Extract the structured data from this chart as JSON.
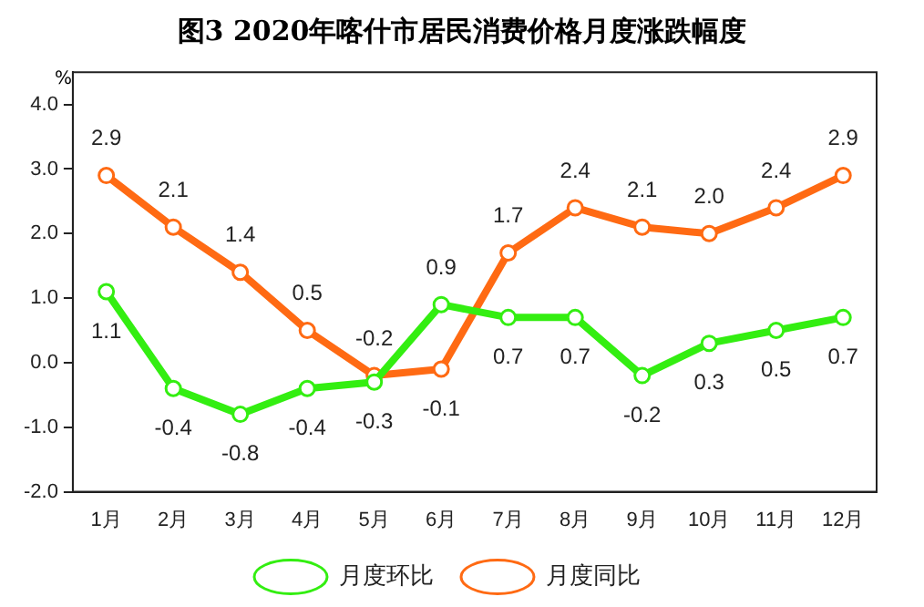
{
  "chart_data": {
    "type": "line",
    "title": "图3  2020年喀什市居民消费价格月度涨跌幅度",
    "ylabel": "%",
    "categories": [
      "1月",
      "2月",
      "3月",
      "4月",
      "5月",
      "6月",
      "7月",
      "8月",
      "9月",
      "10月",
      "11月",
      "12月"
    ],
    "series": [
      {
        "name": "月度环比",
        "color": "#33ee11",
        "values": [
          1.1,
          -0.4,
          -0.8,
          -0.4,
          -0.3,
          0.9,
          0.7,
          0.7,
          -0.2,
          0.3,
          0.5,
          0.7
        ],
        "value_labels": [
          "1.1",
          "-0.4",
          "-0.8",
          "-0.4",
          "-0.3",
          "0.9",
          "0.7",
          "0.7",
          "-0.2",
          "0.3",
          "0.5",
          "0.7"
        ]
      },
      {
        "name": "月度同比",
        "color": "#ff6a13",
        "values": [
          2.9,
          2.1,
          1.4,
          0.5,
          -0.2,
          -0.1,
          1.7,
          2.4,
          2.1,
          2.0,
          2.4,
          2.9
        ],
        "value_labels": [
          "2.9",
          "2.1",
          "1.4",
          "0.5",
          "-0.2",
          "-0.1",
          "1.7",
          "2.4",
          "2.1",
          "2.0",
          "2.4",
          "2.9"
        ]
      }
    ],
    "ylim": [
      -2,
      4.5
    ],
    "yticks": [
      {
        "value": -2,
        "label": "-2.0"
      },
      {
        "value": -1,
        "label": "-1.0"
      },
      {
        "value": 0,
        "label": "0.0"
      },
      {
        "value": 1,
        "label": "1.0"
      },
      {
        "value": 2,
        "label": "2.0"
      },
      {
        "value": 3,
        "label": "3.0"
      },
      {
        "value": 4,
        "label": "4.0"
      }
    ],
    "grid": false,
    "legend": "bottom",
    "marker": "circle",
    "line_style": "solid"
  }
}
